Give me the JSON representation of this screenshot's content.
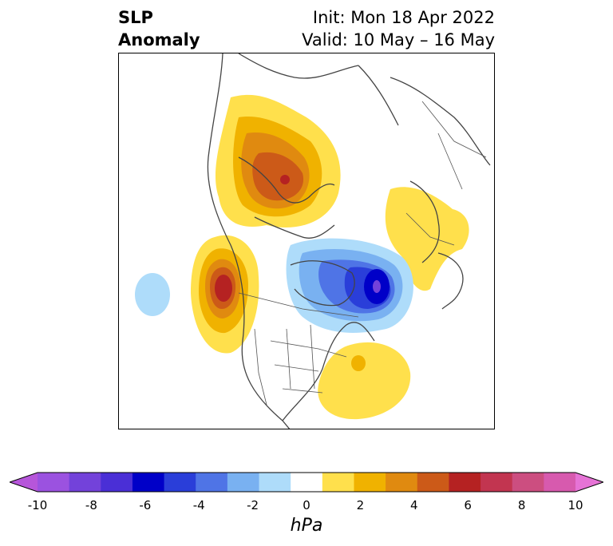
{
  "title": {
    "left_line1": "SLP",
    "left_line2": "Anomaly",
    "right_line1": "Init: Mon 18 Apr 2022",
    "right_line2": "Valid: 10 May – 16 May"
  },
  "colorbar": {
    "units": "hPa",
    "ticks": [
      "-10",
      "-8",
      "-6",
      "-4",
      "-2",
      "0",
      "2",
      "4",
      "6",
      "8",
      "10"
    ],
    "colors": [
      "#b656da",
      "#9b52e0",
      "#7342da",
      "#4a2fd6",
      "#0000c8",
      "#2a3ed9",
      "#4f74e6",
      "#79b1f1",
      "#aedcfa",
      "#ffffff",
      "#ffe04c",
      "#f0b200",
      "#e08a10",
      "#cc5a18",
      "#b52222",
      "#c23550",
      "#cc4e80",
      "#d75aae",
      "#e673d6"
    ]
  },
  "map": {
    "features": [
      "positive-anomaly-canada-hudson",
      "positive-anomaly-pacific-northwest",
      "positive-anomaly-western-atlantic",
      "positive-anomaly-scandinavia",
      "negative-anomaly-greenland-arctic",
      "negative-anomaly-north-pacific"
    ],
    "colors": {
      "coast": "#444444",
      "border": "#555555"
    }
  }
}
